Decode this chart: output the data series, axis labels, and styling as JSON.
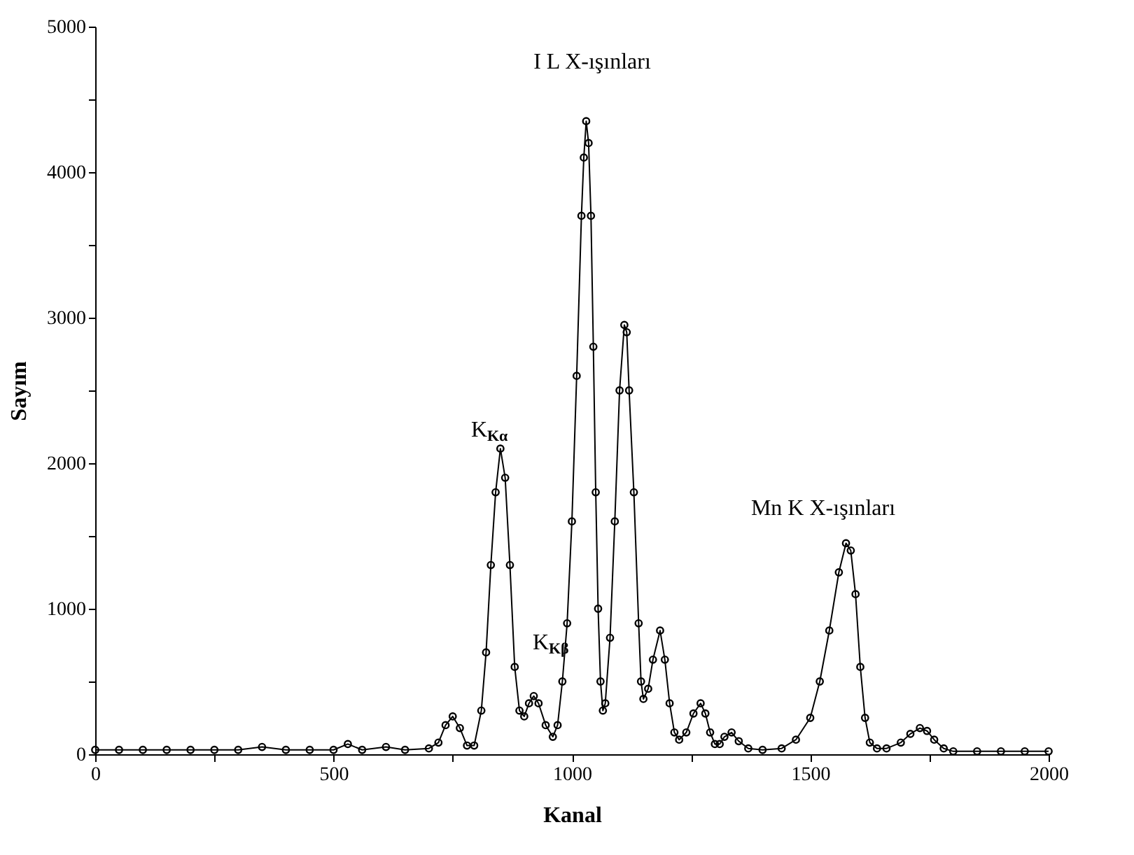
{
  "chart_data": {
    "type": "line",
    "xlabel": "Kanal",
    "ylabel": "Sayım",
    "x": [
      0,
      50,
      100,
      150,
      200,
      250,
      300,
      350,
      400,
      450,
      500,
      530,
      560,
      610,
      650,
      700,
      720,
      735,
      750,
      765,
      780,
      795,
      810,
      820,
      830,
      840,
      850,
      860,
      870,
      880,
      890,
      900,
      910,
      920,
      930,
      945,
      960,
      970,
      980,
      990,
      1000,
      1010,
      1020,
      1025,
      1030,
      1035,
      1040,
      1045,
      1050,
      1055,
      1060,
      1065,
      1070,
      1080,
      1090,
      1100,
      1110,
      1115,
      1120,
      1130,
      1140,
      1145,
      1150,
      1160,
      1170,
      1185,
      1195,
      1205,
      1215,
      1225,
      1240,
      1255,
      1270,
      1280,
      1290,
      1300,
      1310,
      1320,
      1335,
      1350,
      1370,
      1400,
      1440,
      1470,
      1500,
      1520,
      1540,
      1560,
      1575,
      1585,
      1595,
      1605,
      1615,
      1625,
      1640,
      1660,
      1690,
      1710,
      1730,
      1745,
      1760,
      1780,
      1800,
      1850,
      1900,
      1950,
      2000
    ],
    "series": [
      {
        "color": "#000000",
        "values": [
          30,
          30,
          30,
          30,
          30,
          30,
          30,
          50,
          30,
          30,
          30,
          70,
          30,
          50,
          30,
          40,
          80,
          200,
          260,
          180,
          60,
          60,
          300,
          700,
          1300,
          1800,
          2100,
          1900,
          1300,
          600,
          300,
          260,
          350,
          400,
          350,
          200,
          120,
          200,
          500,
          900,
          1600,
          2600,
          3700,
          4100,
          4350,
          4200,
          3700,
          2800,
          1800,
          1000,
          500,
          300,
          350,
          800,
          1600,
          2500,
          2950,
          2900,
          2500,
          1800,
          900,
          500,
          380,
          450,
          650,
          850,
          650,
          350,
          150,
          100,
          150,
          280,
          350,
          280,
          150,
          70,
          70,
          120,
          150,
          90,
          40,
          30,
          40,
          100,
          250,
          500,
          850,
          1250,
          1450,
          1400,
          1100,
          600,
          250,
          80,
          40,
          40,
          80,
          140,
          180,
          160,
          100,
          40,
          20,
          20,
          20,
          20,
          20
        ]
      }
    ],
    "xlim": [
      0,
      2000
    ],
    "ylim": [
      0,
      5000
    ],
    "xticks": [
      0,
      {
        "value": 250,
        "label": null
      },
      500,
      {
        "value": 750,
        "label": null
      },
      1000,
      {
        "value": 1250,
        "label": null
      },
      1500,
      {
        "value": 1750,
        "label": null
      },
      2000
    ],
    "yticks": [
      0,
      {
        "value": 500,
        "label": null
      },
      1000,
      {
        "value": 1500,
        "label": null
      },
      2000,
      {
        "value": 2500,
        "label": null
      },
      3000,
      {
        "value": 3500,
        "label": null
      },
      4000,
      {
        "value": 4500,
        "label": null
      },
      5000
    ],
    "marker": "circle",
    "line_style": "solid",
    "grid": false,
    "annotations": [
      "I L X-ışınları",
      "K$_{Kα}$",
      "K$_{Kβ}$",
      "Mn K X-ışınları"
    ]
  }
}
